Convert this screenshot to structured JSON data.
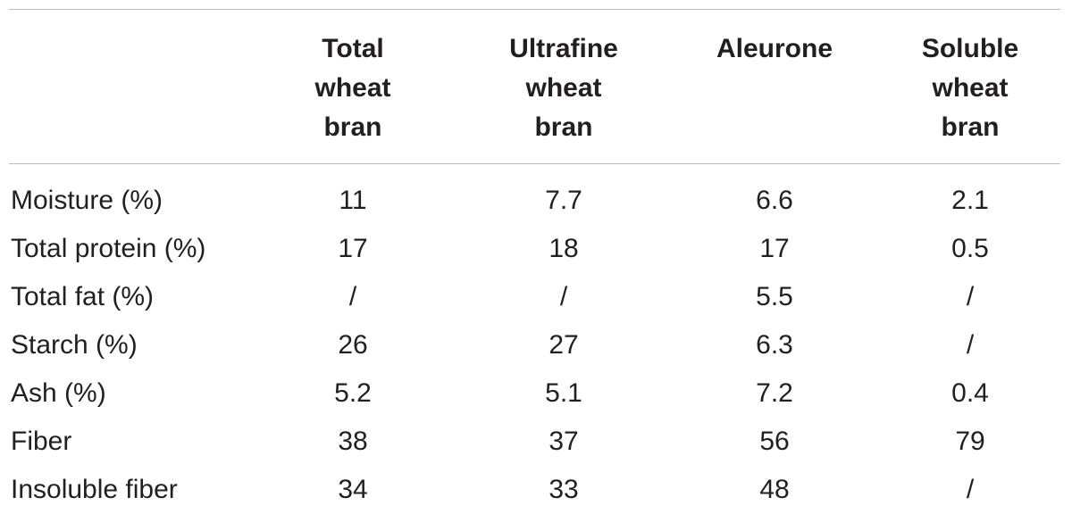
{
  "table": {
    "columns": [
      "",
      "Total wheat bran",
      "Ultrafine wheat bran",
      "Aleurone",
      "Soluble wheat bran"
    ],
    "column_lines": [
      [],
      [
        "Total",
        "wheat",
        "bran"
      ],
      [
        "Ultrafine",
        "wheat",
        "bran"
      ],
      [
        "Aleurone"
      ],
      [
        "Soluble",
        "wheat",
        "bran"
      ]
    ],
    "rows": [
      {
        "label": "Moisture (%)",
        "values": [
          "11",
          "7.7",
          "6.6",
          "2.1"
        ]
      },
      {
        "label": "Total protein (%)",
        "values": [
          "17",
          "18",
          "17",
          "0.5"
        ]
      },
      {
        "label": "Total fat (%)",
        "values": [
          "/",
          "/",
          "5.5",
          "/"
        ]
      },
      {
        "label": "Starch (%)",
        "values": [
          "26",
          "27",
          "6.3",
          "/"
        ]
      },
      {
        "label": "Ash (%)",
        "values": [
          "5.2",
          "5.1",
          "7.2",
          "0.4"
        ]
      },
      {
        "label": "Fiber",
        "values": [
          "38",
          "37",
          "56",
          "79"
        ]
      },
      {
        "label": "Insoluble fiber",
        "values": [
          "34",
          "33",
          "48",
          "/"
        ]
      }
    ]
  }
}
